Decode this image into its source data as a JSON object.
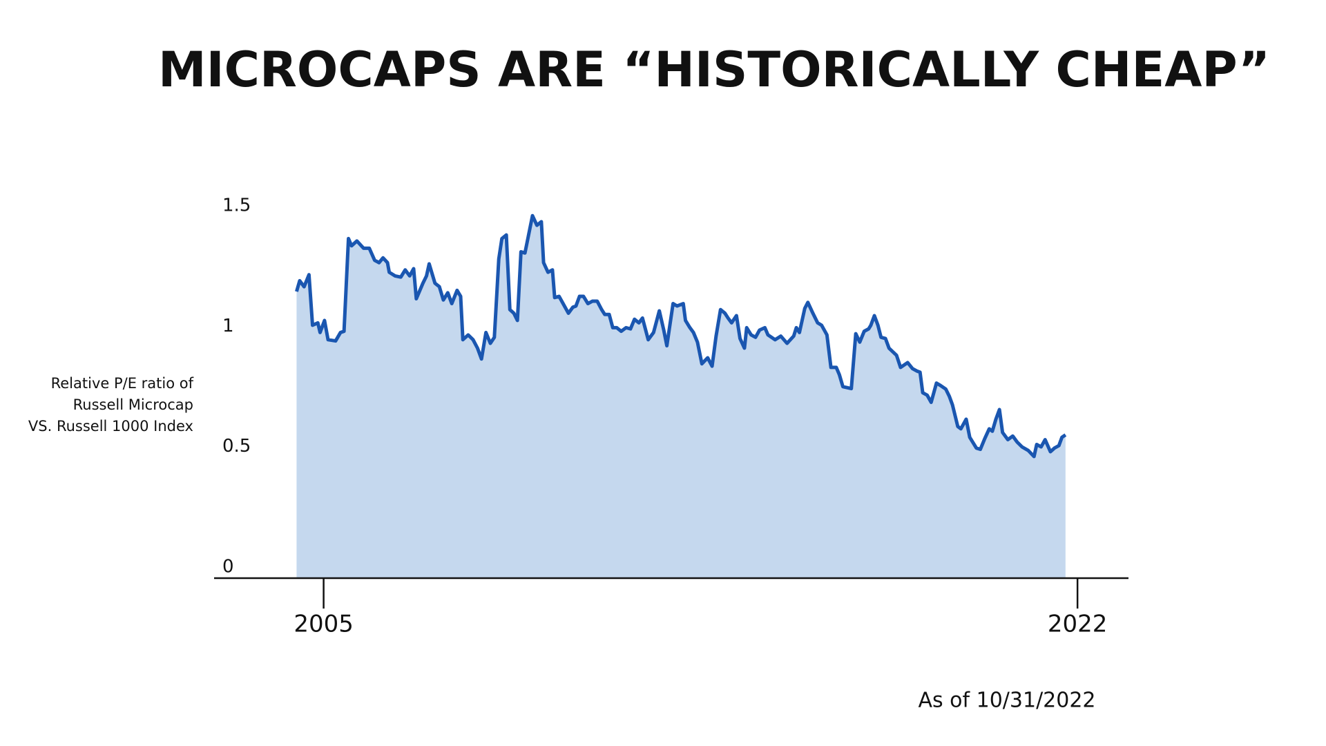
{
  "chart_data": {
    "type": "area",
    "title": "MICROCAPS ARE “HISTORICALLY CHEAP”",
    "ylabel": [
      "Relative P/E ratio of",
      "Russell Microcap",
      "VS. Russell 1000 Index"
    ],
    "annotation": "As of 10/31/2022",
    "color": "#1a56b0",
    "fill": "#c5d8ee",
    "grid": true,
    "xlim": [
      2002.53,
      2023.15
    ],
    "xticks": [
      2005,
      2022
    ],
    "ylim": [
      0,
      1.5
    ],
    "yticks": [
      0,
      0.5,
      1,
      1.5
    ],
    "x": [
      2004.39,
      2004.46,
      2004.56,
      2004.67,
      2004.75,
      2004.87,
      2004.92,
      2005.02,
      2005.1,
      2005.27,
      2005.38,
      2005.46,
      2005.56,
      2005.63,
      2005.75,
      2005.9,
      2006.03,
      2006.15,
      2006.25,
      2006.34,
      2006.44,
      2006.48,
      2006.61,
      2006.74,
      2006.84,
      2006.94,
      2007.03,
      2007.09,
      2007.24,
      2007.32,
      2007.38,
      2007.51,
      2007.61,
      2007.7,
      2007.8,
      2007.89,
      2008.01,
      2008.09,
      2008.14,
      2008.26,
      2008.37,
      2008.47,
      2008.56,
      2008.66,
      2008.76,
      2008.85,
      2008.95,
      2009.02,
      2009.12,
      2009.2,
      2009.29,
      2009.37,
      2009.45,
      2009.54,
      2009.71,
      2009.81,
      2009.91,
      2009.96,
      2010.06,
      2010.16,
      2010.21,
      2010.31,
      2010.4,
      2010.52,
      2010.62,
      2010.69,
      2010.77,
      2010.86,
      2010.96,
      2011.06,
      2011.17,
      2011.27,
      2011.34,
      2011.44,
      2011.52,
      2011.61,
      2011.71,
      2011.82,
      2011.92,
      2012.01,
      2012.11,
      2012.19,
      2012.32,
      2012.44,
      2012.57,
      2012.67,
      2012.74,
      2012.88,
      2012.97,
      2013.11,
      2013.16,
      2013.26,
      2013.34,
      2013.43,
      2013.53,
      2013.66,
      2013.76,
      2013.85,
      2013.95,
      2014.05,
      2014.12,
      2014.2,
      2014.31,
      2014.39,
      2014.49,
      2014.54,
      2014.64,
      2014.74,
      2014.83,
      2014.95,
      2015.02,
      2015.18,
      2015.31,
      2015.45,
      2015.6,
      2015.66,
      2015.73,
      2015.85,
      2015.92,
      2016.02,
      2016.14,
      2016.23,
      2016.35,
      2016.44,
      2016.56,
      2016.63,
      2016.71,
      2016.9,
      2017.0,
      2017.09,
      2017.19,
      2017.29,
      2017.34,
      2017.42,
      2017.5,
      2017.57,
      2017.67,
      2017.75,
      2017.92,
      2018.01,
      2018.17,
      2018.28,
      2018.38,
      2018.45,
      2018.51,
      2018.61,
      2018.7,
      2018.82,
      2018.91,
      2019.03,
      2019.11,
      2019.18,
      2019.3,
      2019.37,
      2019.49,
      2019.57,
      2019.72,
      2019.81,
      2019.91,
      2020.01,
      2020.08,
      2020.16,
      2020.24,
      2020.31,
      2020.43,
      2020.54,
      2020.64,
      2020.75,
      2020.89,
      2021.02,
      2021.08,
      2021.18,
      2021.27,
      2021.39,
      2021.48,
      2021.58,
      2021.65,
      2021.73
    ],
    "values": [
      1.19,
      1.235,
      1.21,
      1.26,
      1.05,
      1.06,
      1.02,
      1.07,
      0.99,
      0.985,
      1.02,
      1.025,
      1.41,
      1.38,
      1.4,
      1.37,
      1.37,
      1.32,
      1.31,
      1.33,
      1.31,
      1.27,
      1.255,
      1.25,
      1.28,
      1.255,
      1.285,
      1.16,
      1.225,
      1.255,
      1.305,
      1.225,
      1.21,
      1.155,
      1.185,
      1.14,
      1.195,
      1.17,
      0.99,
      1.01,
      0.99,
      0.955,
      0.91,
      1.02,
      0.975,
      1.0,
      1.325,
      1.41,
      1.425,
      1.115,
      1.1,
      1.07,
      1.355,
      1.35,
      1.505,
      1.465,
      1.48,
      1.31,
      1.27,
      1.28,
      1.165,
      1.17,
      1.14,
      1.1,
      1.125,
      1.13,
      1.17,
      1.17,
      1.14,
      1.15,
      1.15,
      1.115,
      1.095,
      1.095,
      1.04,
      1.04,
      1.025,
      1.04,
      1.035,
      1.075,
      1.06,
      1.08,
      0.99,
      1.02,
      1.11,
      1.03,
      0.965,
      1.14,
      1.13,
      1.14,
      1.07,
      1.04,
      1.02,
      0.98,
      0.89,
      0.915,
      0.88,
      1.005,
      1.115,
      1.1,
      1.08,
      1.06,
      1.09,
      0.995,
      0.955,
      1.04,
      1.01,
      1.0,
      1.03,
      1.04,
      1.01,
      0.99,
      1.005,
      0.975,
      1.005,
      1.04,
      1.02,
      1.12,
      1.145,
      1.105,
      1.06,
      1.05,
      1.01,
      0.875,
      0.875,
      0.845,
      0.795,
      0.787,
      1.015,
      0.98,
      1.025,
      1.035,
      1.05,
      1.09,
      1.05,
      1.0,
      0.995,
      0.955,
      0.925,
      0.875,
      0.895,
      0.87,
      0.86,
      0.855,
      0.77,
      0.76,
      0.73,
      0.81,
      0.8,
      0.785,
      0.755,
      0.72,
      0.63,
      0.62,
      0.66,
      0.585,
      0.54,
      0.535,
      0.58,
      0.62,
      0.61,
      0.66,
      0.7,
      0.605,
      0.575,
      0.59,
      0.565,
      0.545,
      0.53,
      0.505,
      0.555,
      0.545,
      0.575,
      0.525,
      0.54,
      0.55,
      0.585,
      0.595
    ]
  }
}
